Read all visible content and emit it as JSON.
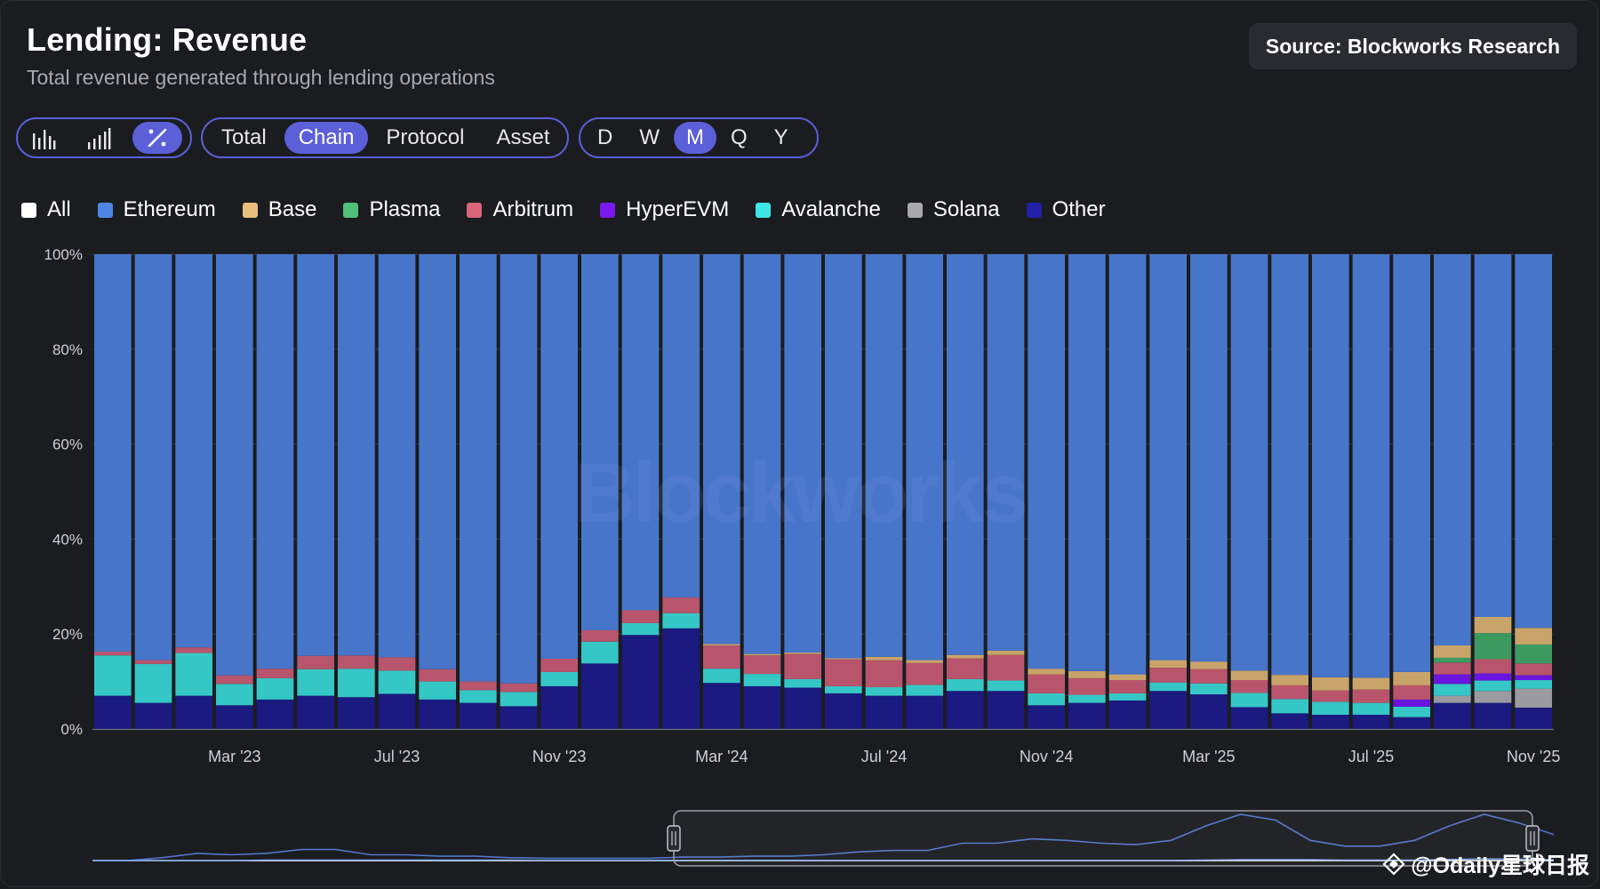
{
  "header": {
    "title": "Lending: Revenue",
    "subtitle": "Total revenue generated through lending operations",
    "source": "Source: Blockworks Research"
  },
  "controls": {
    "chart_types": [
      {
        "name": "bar-chart-icon",
        "active": false
      },
      {
        "name": "stacked-bar-icon",
        "active": false
      },
      {
        "name": "percent-icon",
        "active": true
      }
    ],
    "groupings": [
      {
        "label": "Total",
        "active": false
      },
      {
        "label": "Chain",
        "active": true
      },
      {
        "label": "Protocol",
        "active": false
      },
      {
        "label": "Asset",
        "active": false
      }
    ],
    "periods": [
      {
        "label": "D",
        "active": false
      },
      {
        "label": "W",
        "active": false
      },
      {
        "label": "M",
        "active": true
      },
      {
        "label": "Q",
        "active": false
      },
      {
        "label": "Y",
        "active": false
      }
    ]
  },
  "legend": [
    {
      "label": "All",
      "color": "#ffffff"
    },
    {
      "label": "Ethereum",
      "color": "#4f86e6"
    },
    {
      "label": "Base",
      "color": "#e8bf7d"
    },
    {
      "label": "Plasma",
      "color": "#4fbf7a"
    },
    {
      "label": "Arbitrum",
      "color": "#d9657a"
    },
    {
      "label": "HyperEVM",
      "color": "#7a18f0"
    },
    {
      "label": "Avalanche",
      "color": "#3fe4e4"
    },
    {
      "label": "Solana",
      "color": "#a9a9ad"
    },
    {
      "label": "Other",
      "color": "#2020a8"
    }
  ],
  "watermark": "Blockworks",
  "credit": "@Odaily星球日报",
  "chart_data": {
    "type": "bar",
    "stacked": true,
    "normalized": true,
    "title": "Lending: Revenue",
    "ylabel": "",
    "ylim": [
      0,
      100
    ],
    "y_ticks": [
      "0%",
      "20%",
      "40%",
      "60%",
      "80%",
      "100%"
    ],
    "x_tick_labels": [
      {
        "index": 3,
        "label": "Mar '23"
      },
      {
        "index": 7,
        "label": "Jul '23"
      },
      {
        "index": 11,
        "label": "Nov '23"
      },
      {
        "index": 15,
        "label": "Mar '24"
      },
      {
        "index": 19,
        "label": "Jul '24"
      },
      {
        "index": 23,
        "label": "Nov '24"
      },
      {
        "index": 27,
        "label": "Mar '25"
      },
      {
        "index": 31,
        "label": "Jul '25"
      },
      {
        "index": 35,
        "label": "Nov '25"
      }
    ],
    "categories": [
      "Dec '22",
      "Jan '23",
      "Feb '23",
      "Mar '23",
      "Apr '23",
      "May '23",
      "Jun '23",
      "Jul '23",
      "Aug '23",
      "Sep '23",
      "Oct '23",
      "Nov '23",
      "Dec '23",
      "Jan '24",
      "Feb '24",
      "Mar '24",
      "Apr '24",
      "May '24",
      "Jun '24",
      "Jul '24",
      "Aug '24",
      "Sep '24",
      "Oct '24",
      "Nov '24",
      "Dec '24",
      "Jan '25",
      "Feb '25",
      "Mar '25",
      "Apr '25",
      "May '25",
      "Jun '25",
      "Jul '25",
      "Aug '25",
      "Sep '25",
      "Oct '25",
      "Nov '25"
    ],
    "series": [
      {
        "name": "Other",
        "color": "#1a1a80",
        "values": [
          7,
          5.5,
          7,
          5,
          6.2,
          7,
          6.7,
          7.4,
          6.2,
          5.5,
          4.8,
          9,
          13.8,
          19.8,
          21.2,
          9.7,
          9,
          8.7,
          7.5,
          7,
          7,
          8,
          8,
          5,
          5.5,
          6,
          8,
          7.3,
          4.6,
          3.3,
          3,
          3,
          2.5,
          5.5,
          5.5,
          4.5
        ]
      },
      {
        "name": "Solana",
        "color": "#9a9aa0",
        "values": [
          0,
          0,
          0,
          0,
          0,
          0,
          0,
          0,
          0,
          0,
          0,
          0,
          0,
          0,
          0,
          0,
          0,
          0,
          0,
          0,
          0,
          0,
          0,
          0,
          0,
          0,
          0,
          0,
          0,
          0,
          0,
          0,
          0,
          1.5,
          2.5,
          4
        ]
      },
      {
        "name": "Avalanche",
        "color": "#35c6c6",
        "values": [
          8.5,
          8.2,
          9,
          4.5,
          4.5,
          5.6,
          6,
          4.9,
          3.8,
          2.7,
          3,
          3,
          4.6,
          2.5,
          3.2,
          3,
          2.6,
          1.8,
          1.5,
          1.8,
          2.3,
          2.5,
          2.2,
          2.5,
          1.7,
          1.5,
          1.8,
          2.3,
          3,
          3,
          2.7,
          2.5,
          2.2,
          2.5,
          2.2,
          1.8
        ]
      },
      {
        "name": "HyperEVM",
        "color": "#6a14e0",
        "values": [
          0,
          0,
          0,
          0,
          0,
          0,
          0,
          0,
          0,
          0,
          0,
          0,
          0,
          0,
          0,
          0,
          0,
          0,
          0,
          0,
          0,
          0,
          0,
          0,
          0,
          0,
          0,
          0,
          0,
          0,
          0,
          0,
          1.5,
          2,
          1.5,
          1
        ]
      },
      {
        "name": "Arbitrum",
        "color": "#b8556c",
        "values": [
          0.8,
          0.8,
          1.2,
          1.8,
          2,
          2.8,
          2.8,
          2.8,
          2.6,
          1.8,
          1.8,
          2.8,
          2.4,
          2.7,
          3.3,
          4.9,
          3.9,
          5.3,
          5.7,
          5.7,
          4.6,
          4.4,
          5.4,
          4,
          3.5,
          2.8,
          3.1,
          3,
          2.7,
          2.9,
          2.4,
          2.8,
          3,
          2.5,
          3,
          2.5
        ]
      },
      {
        "name": "Plasma",
        "color": "#3c9a61",
        "values": [
          0,
          0,
          0,
          0,
          0,
          0,
          0,
          0,
          0,
          0,
          0,
          0,
          0,
          0,
          0,
          0,
          0,
          0,
          0,
          0,
          0,
          0,
          0,
          0,
          0,
          0,
          0,
          0,
          0,
          0,
          0,
          0,
          0,
          1,
          5.5,
          4
        ]
      },
      {
        "name": "Base",
        "color": "#c9a46a",
        "values": [
          0,
          0,
          0,
          0,
          0,
          0,
          0,
          0,
          0,
          0,
          0,
          0,
          0,
          0,
          0,
          0.3,
          0.3,
          0.3,
          0.2,
          0.7,
          0.6,
          0.7,
          0.9,
          1.2,
          1.5,
          1.2,
          1.6,
          1.6,
          2,
          2.2,
          2.8,
          2.5,
          2.8,
          2.6,
          3.4,
          3.5
        ]
      },
      {
        "name": "Ethereum",
        "color": "#4775c9",
        "values": [
          83.7,
          85.5,
          82.8,
          88.7,
          87.3,
          84.6,
          84.5,
          84.9,
          87.4,
          90,
          90.4,
          85.2,
          79.2,
          75,
          72.3,
          82.1,
          84.2,
          83.9,
          85.1,
          84.8,
          85.5,
          84.4,
          83.5,
          87.3,
          87.8,
          88.5,
          85.5,
          85.8,
          87.7,
          88.6,
          89.1,
          89.2,
          88,
          82.4,
          76.4,
          78.7
        ]
      }
    ]
  },
  "navigator": {
    "series": [
      {
        "name": "Total",
        "color": "#5176c8",
        "values": [
          0,
          0,
          1,
          2.5,
          2,
          2.5,
          3.8,
          3.8,
          2,
          2,
          1.5,
          1.5,
          1,
          0.8,
          0.8,
          0.8,
          0.8,
          1.2,
          1.2,
          1.5,
          1.5,
          2,
          3,
          3.5,
          3.5,
          6,
          6,
          7.5,
          7,
          6,
          5.5,
          7,
          12,
          16,
          14,
          7,
          5,
          5,
          7,
          12,
          16,
          13,
          9
        ]
      },
      {
        "name": "Baseline",
        "color": "#7fb0ff",
        "values": [
          0,
          0,
          0,
          0,
          0,
          0.2,
          0.2,
          0.2,
          0.2,
          0.2,
          0.2,
          0.2,
          0.2,
          0.1,
          0.1,
          0.1,
          0.1,
          0.1,
          0.1,
          0.1,
          0.1,
          0.1,
          0.1,
          0.1,
          0.1,
          0.1,
          0.1,
          0.1,
          0.1,
          0.1,
          0.1,
          0.1,
          0.2,
          0.3,
          0.3,
          0.3,
          0.2,
          0.2,
          0.2,
          0.4,
          0.6,
          0.5,
          0.3
        ]
      }
    ]
  }
}
